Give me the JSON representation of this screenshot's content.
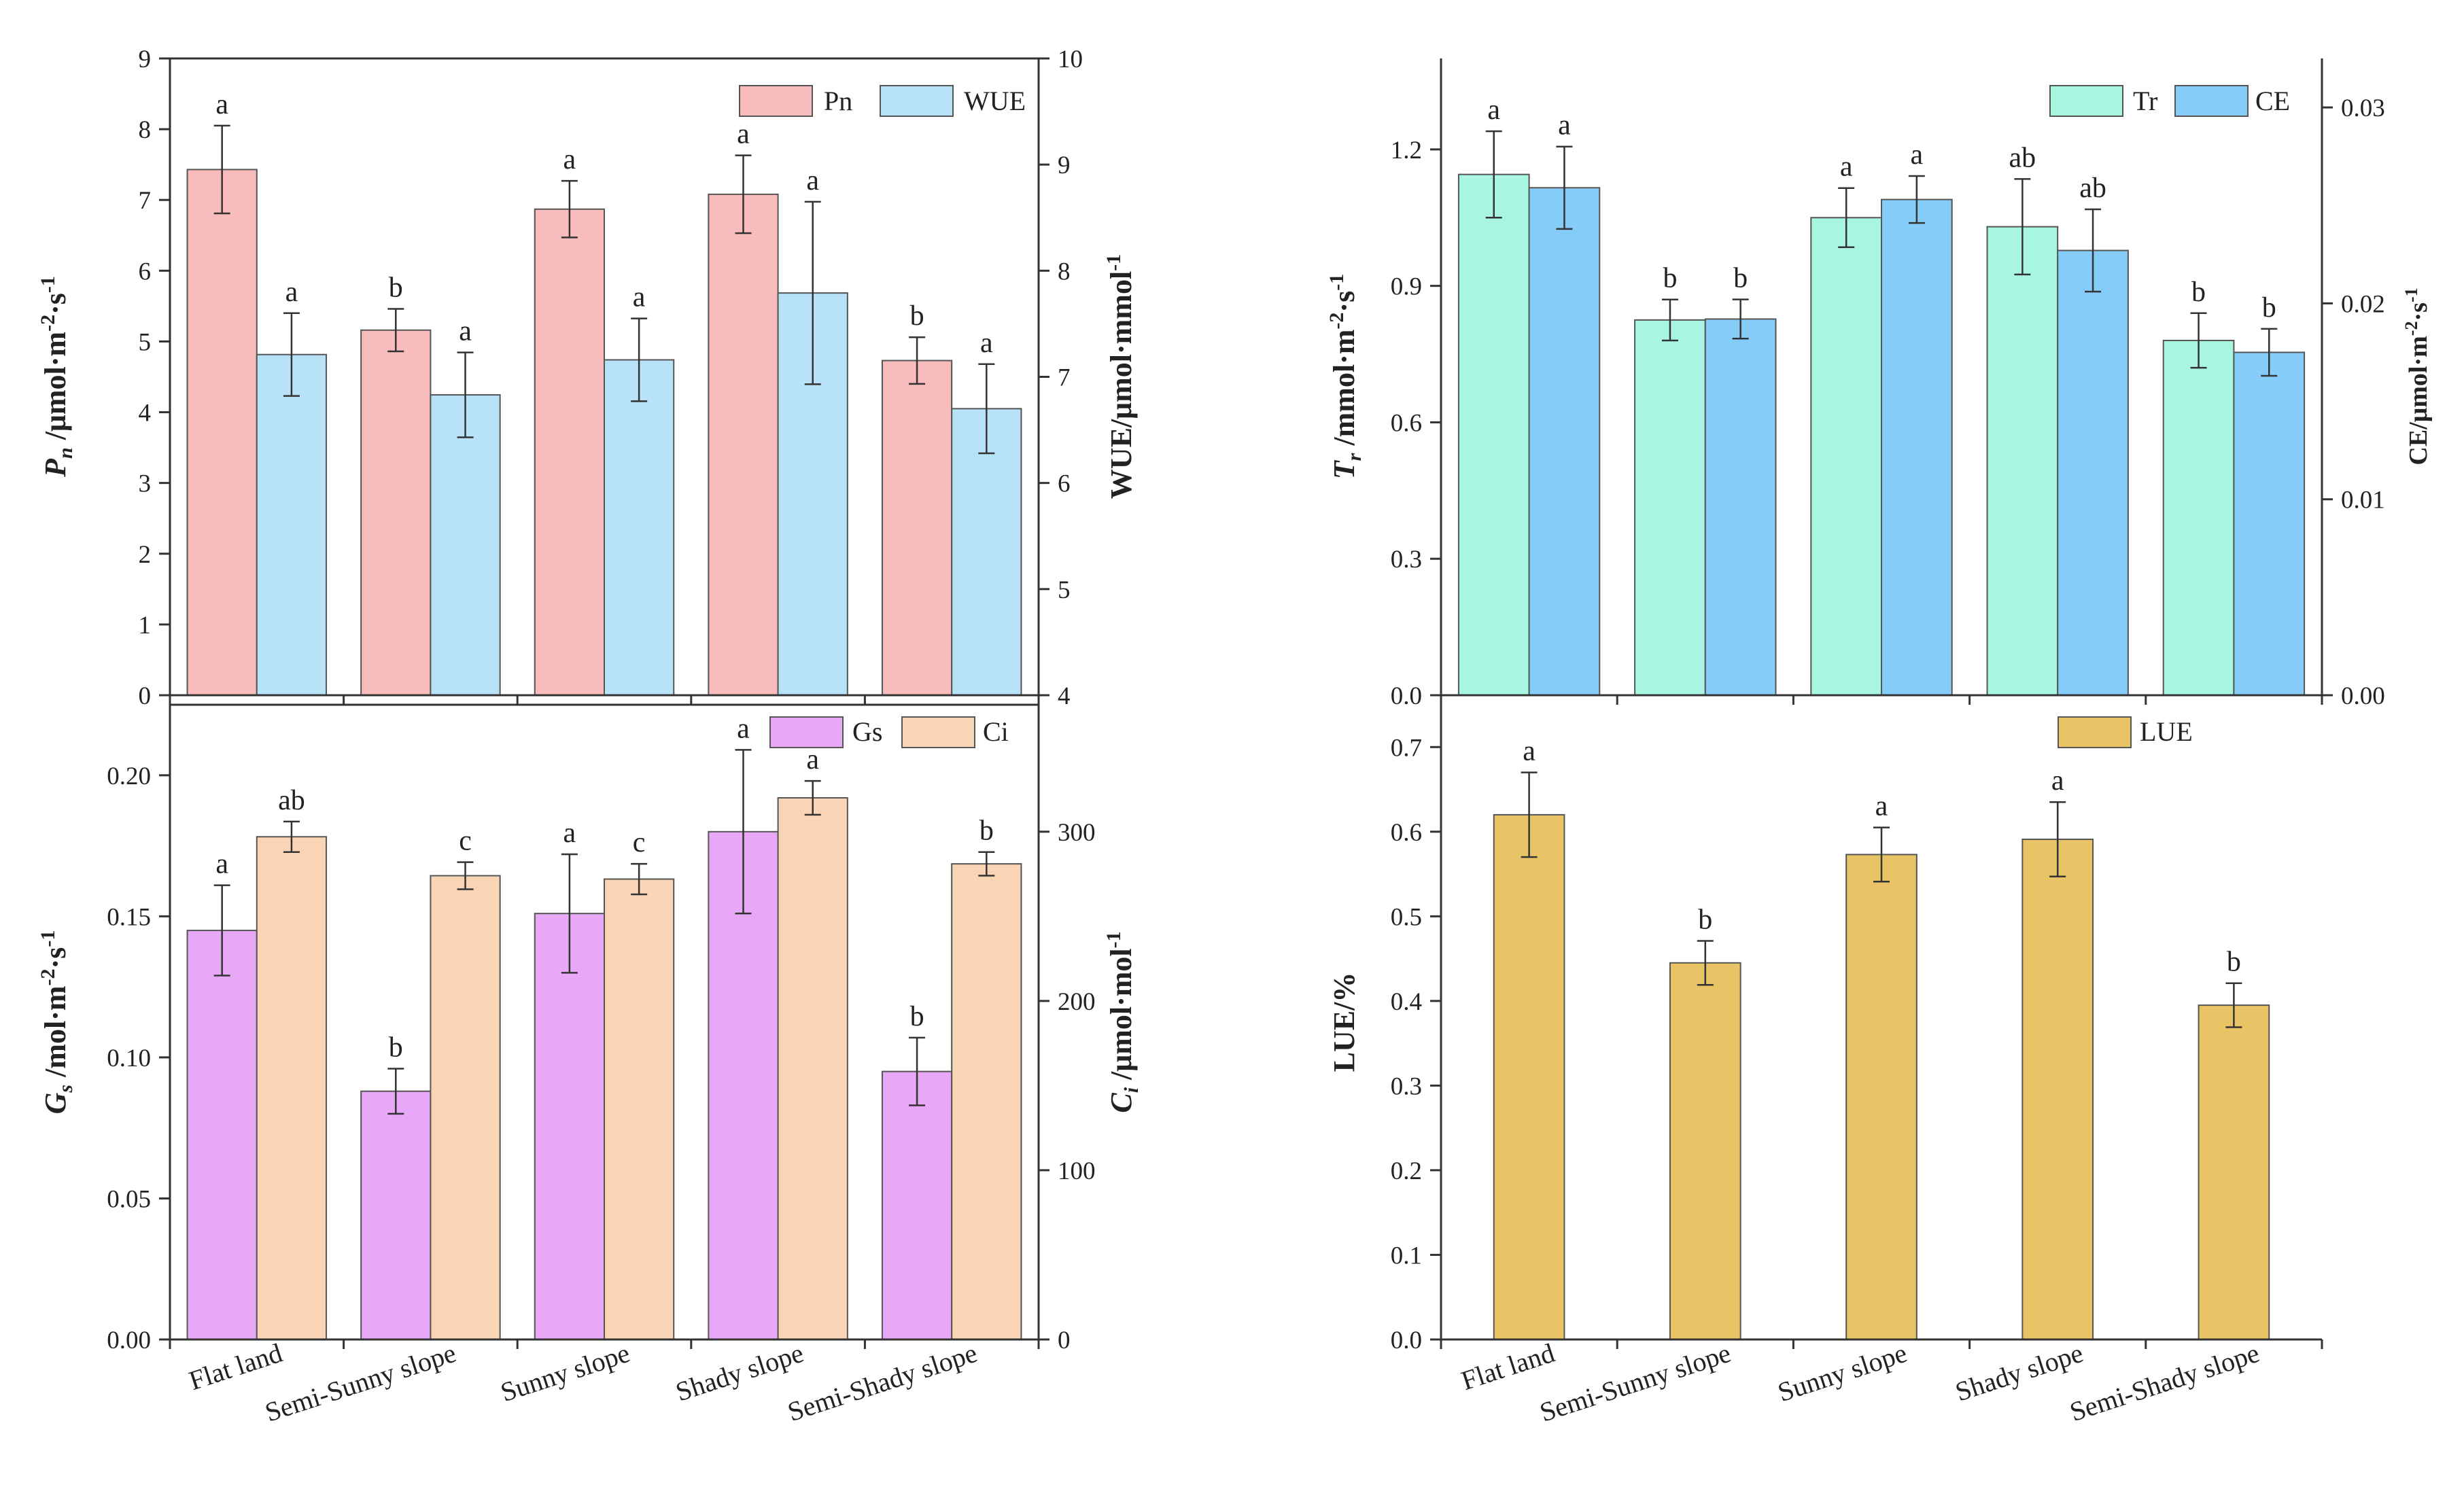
{
  "categories": [
    "Flat land",
    "Semi-Sunny slope",
    "Sunny slope",
    "Shady slope",
    "Semi-Shady slope"
  ],
  "colors": {
    "pn": "#f9bcbc",
    "wue": "#b8e2f8",
    "gs": "#e9a8f7",
    "ci": "#f9d5b5",
    "tr": "#a8f6e1",
    "ce": "#85cdf8",
    "lue": "#e8c467"
  },
  "chart_data": [
    {
      "type": "bar",
      "panel": "top-left",
      "categories": [
        "Flat land",
        "Semi-Sunny slope",
        "Sunny slope",
        "Shady slope",
        "Semi-Shady slope"
      ],
      "left_axis": {
        "title": "Pn /μmol·m-2·s-1",
        "ylim": [
          0,
          9
        ],
        "ticks": [
          0,
          1,
          2,
          3,
          4,
          5,
          6,
          7,
          8,
          9
        ],
        "tick_labels": [
          "0",
          "1",
          "2",
          "3",
          "4",
          "5",
          "6",
          "7",
          "8",
          "9"
        ]
      },
      "right_axis": {
        "title": "WUE/μmol·mmol-1",
        "ylim": [
          4,
          10
        ],
        "ticks": [
          4,
          5,
          6,
          7,
          8,
          9,
          10
        ],
        "tick_labels": [
          "4",
          "5",
          "6",
          "7",
          "8",
          "9",
          "10"
        ]
      },
      "legend": [
        "Pn",
        "WUE"
      ],
      "legend_position": "top-right",
      "series": [
        {
          "name": "Pn",
          "axis": "left",
          "color_key": "pn",
          "values": [
            7.43,
            5.16,
            6.87,
            7.08,
            4.73
          ],
          "errors": [
            0.62,
            0.3,
            0.4,
            0.55,
            0.33
          ],
          "sig": [
            "a",
            "b",
            "a",
            "a",
            "b"
          ]
        },
        {
          "name": "WUE",
          "axis": "right",
          "color_key": "wue",
          "values": [
            7.21,
            6.83,
            7.16,
            7.79,
            6.7
          ],
          "errors": [
            0.39,
            0.4,
            0.39,
            0.86,
            0.42
          ],
          "sig": [
            "a",
            "a",
            "a",
            "a",
            "a"
          ]
        }
      ]
    },
    {
      "type": "bar",
      "panel": "top-right",
      "categories": [
        "Flat land",
        "Semi-Sunny slope",
        "Sunny slope",
        "Shady slope",
        "Semi-Shady slope"
      ],
      "left_axis": {
        "title": "Tr /mmol·m-2·s-1",
        "ylim": [
          0,
          1.4
        ],
        "ticks": [
          0,
          0.3,
          0.6,
          0.9,
          1.2
        ],
        "tick_labels": [
          "0.0",
          "0.3",
          "0.6",
          "0.9",
          "1.2"
        ]
      },
      "right_axis": {
        "title": "CE/μmol·m-2·s-1",
        "ylim": [
          0,
          0.0325
        ],
        "ticks": [
          0,
          0.01,
          0.02,
          0.03
        ],
        "tick_labels": [
          "0.00",
          "0.01",
          "0.02",
          "0.03"
        ]
      },
      "legend": [
        "Tr",
        "CE"
      ],
      "legend_position": "top-right",
      "series": [
        {
          "name": "Tr",
          "axis": "left",
          "color_key": "tr",
          "values": [
            1.145,
            0.825,
            1.05,
            1.03,
            0.78
          ],
          "errors": [
            0.095,
            0.045,
            0.065,
            0.105,
            0.06
          ],
          "sig": [
            "a",
            "b",
            "a",
            "ab",
            "b"
          ]
        },
        {
          "name": "CE",
          "axis": "right",
          "color_key": "ce",
          "values": [
            0.0259,
            0.0192,
            0.0253,
            0.0227,
            0.0175
          ],
          "errors": [
            0.0021,
            0.001,
            0.0012,
            0.0021,
            0.0012
          ],
          "sig": [
            "a",
            "b",
            "a",
            "ab",
            "b"
          ]
        }
      ]
    },
    {
      "type": "bar",
      "panel": "bottom-left",
      "categories": [
        "Flat land",
        "Semi-Sunny slope",
        "Sunny slope",
        "Shady slope",
        "Semi-Shady slope"
      ],
      "left_axis": {
        "title": "Gs /mol·m-2·s-1",
        "ylim": [
          0,
          0.225
        ],
        "ticks": [
          0,
          0.05,
          0.1,
          0.15,
          0.2
        ],
        "tick_labels": [
          "0.00",
          "0.05",
          "0.10",
          "0.15",
          "0.20"
        ]
      },
      "right_axis": {
        "title": "Ci /μmol·mol-1",
        "ylim": [
          0,
          375
        ],
        "ticks": [
          0,
          100,
          200,
          300
        ],
        "tick_labels": [
          "0",
          "100",
          "200",
          "300"
        ]
      },
      "legend": [
        "Gs",
        "Ci"
      ],
      "legend_position": "top-right",
      "series": [
        {
          "name": "Gs",
          "axis": "left",
          "color_key": "gs",
          "values": [
            0.145,
            0.088,
            0.151,
            0.18,
            0.095
          ],
          "errors": [
            0.016,
            0.008,
            0.021,
            0.029,
            0.012
          ],
          "sig": [
            "a",
            "b",
            "a",
            "a",
            "b"
          ]
        },
        {
          "name": "Ci",
          "axis": "right",
          "color_key": "ci",
          "values": [
            297,
            274,
            272,
            320,
            281
          ],
          "errors": [
            9,
            8,
            9,
            10,
            7
          ],
          "sig": [
            "ab",
            "c",
            "c",
            "a",
            "b"
          ]
        }
      ]
    },
    {
      "type": "bar",
      "panel": "bottom-right",
      "categories": [
        "Flat land",
        "Semi-Sunny slope",
        "Sunny slope",
        "Shady slope",
        "Semi-Shady slope"
      ],
      "left_axis": {
        "title": "LUE/%",
        "ylim": [
          0,
          0.75
        ],
        "ticks": [
          0,
          0.1,
          0.2,
          0.3,
          0.4,
          0.5,
          0.6,
          0.7
        ],
        "tick_labels": [
          "0.0",
          "0.1",
          "0.2",
          "0.3",
          "0.4",
          "0.5",
          "0.6",
          "0.7"
        ]
      },
      "legend": [
        "LUE"
      ],
      "legend_position": "top-right",
      "series": [
        {
          "name": "LUE",
          "axis": "left",
          "color_key": "lue",
          "values": [
            0.62,
            0.445,
            0.573,
            0.591,
            0.395
          ],
          "errors": [
            0.05,
            0.026,
            0.032,
            0.044,
            0.026
          ],
          "sig": [
            "a",
            "b",
            "a",
            "a",
            "b"
          ]
        }
      ]
    }
  ]
}
